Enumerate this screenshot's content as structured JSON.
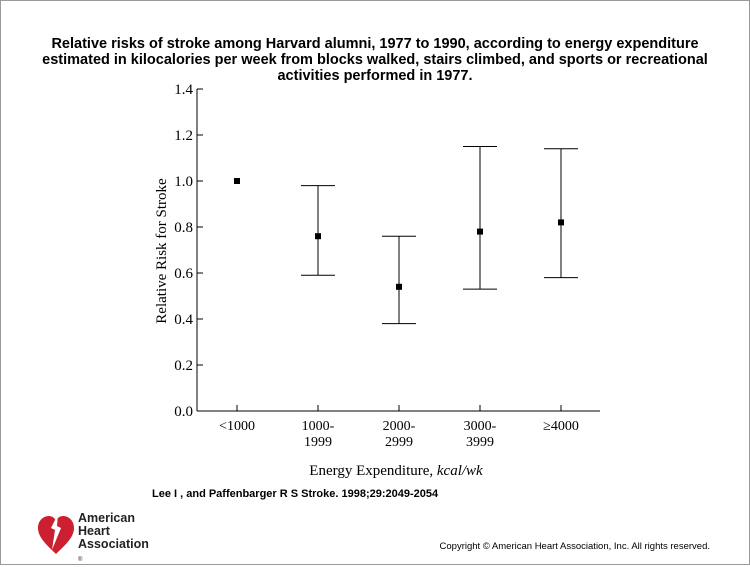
{
  "page": {
    "title_lines": [
      "Relative risks of stroke among Harvard alumni, 1977 to 1990, according to energy expenditure",
      "estimated in kilocalories per week from blocks walked, stairs climbed, and sports or recreational",
      "activities performed in 1977."
    ],
    "citation": "Lee I , and Paffenbarger R S Stroke. 1998;29:2049-2054",
    "copyright": "Copyright © American Heart Association, Inc. All rights reserved.",
    "logo": {
      "line1": "American",
      "line2": "Heart",
      "line3": "Association",
      "reg": "®",
      "icon": "heart-torch-icon",
      "color": "#cc1f2f"
    }
  },
  "chart_data": {
    "type": "scatter",
    "title": "",
    "xlabel": "Energy Expenditure, kcal/wk",
    "xlabel_parts": [
      "Energy Expenditure, ",
      "kcal/wk"
    ],
    "ylabel": "Relative Risk for Stroke",
    "ylim": [
      0.0,
      1.4
    ],
    "yticks": [
      "0.0",
      "0.2",
      "0.4",
      "0.6",
      "0.8",
      "1.0",
      "1.2",
      "1.4"
    ],
    "grid": false,
    "categories": [
      [
        "<1000"
      ],
      [
        "1000-",
        "1999"
      ],
      [
        "2000-",
        "2999"
      ],
      [
        "3000-",
        "3999"
      ],
      [
        "≥4000"
      ]
    ],
    "series": [
      {
        "values": [
          1.0,
          0.76,
          0.54,
          0.78,
          0.82
        ],
        "ci_lower": [
          null,
          0.59,
          0.38,
          0.53,
          0.58
        ],
        "ci_upper": [
          null,
          0.98,
          0.76,
          1.15,
          1.14
        ]
      }
    ]
  }
}
